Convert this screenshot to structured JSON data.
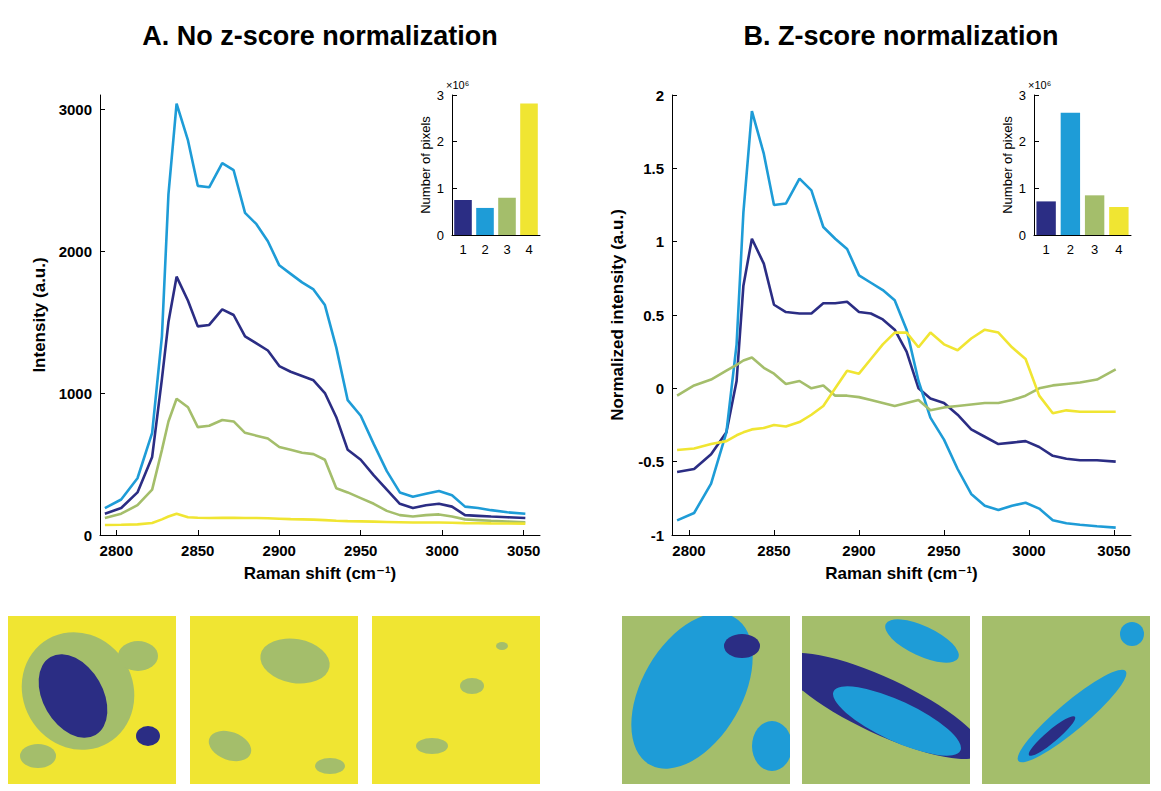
{
  "chart_data": [
    {
      "type": "line",
      "title": "A. No z-score normalization",
      "x_label": "Raman shift (cm⁻¹)",
      "y_label": "Intensity (a.u.)",
      "xlim": [
        2790,
        3060
      ],
      "xticks": [
        2800,
        2850,
        2900,
        2950,
        3000,
        3050
      ],
      "ylim": [
        0,
        3100
      ],
      "yticks": [
        0,
        1000,
        2000,
        3000
      ],
      "grid": false,
      "x": [
        2793,
        2803,
        2813,
        2822,
        2828,
        2832,
        2837,
        2844,
        2850,
        2857,
        2865,
        2872,
        2879,
        2886,
        2893,
        2900,
        2907,
        2914,
        2921,
        2928,
        2935,
        2942,
        2950,
        2958,
        2966,
        2974,
        2982,
        2990,
        2998,
        3006,
        3014,
        3022,
        3030,
        3040,
        3051
      ],
      "series": [
        {
          "color": "#2b2d84",
          "values": [
            150,
            190,
            300,
            550,
            1100,
            1500,
            1820,
            1650,
            1470,
            1480,
            1590,
            1550,
            1400,
            1350,
            1300,
            1190,
            1150,
            1120,
            1090,
            1000,
            830,
            600,
            530,
            420,
            320,
            220,
            190,
            210,
            220,
            200,
            140,
            135,
            130,
            125,
            120
          ]
        },
        {
          "color": "#1e9cd7",
          "values": [
            190,
            250,
            400,
            720,
            1400,
            2400,
            3040,
            2780,
            2460,
            2450,
            2620,
            2570,
            2270,
            2190,
            2070,
            1900,
            1840,
            1780,
            1730,
            1620,
            1320,
            950,
            840,
            640,
            450,
            300,
            270,
            290,
            310,
            280,
            200,
            190,
            175,
            160,
            150
          ]
        },
        {
          "color": "#a4be6b",
          "values": [
            120,
            150,
            210,
            320,
            600,
            800,
            960,
            900,
            760,
            770,
            810,
            800,
            720,
            700,
            680,
            620,
            600,
            580,
            570,
            530,
            330,
            300,
            260,
            220,
            170,
            140,
            130,
            140,
            145,
            130,
            110,
            105,
            100,
            95,
            90
          ]
        },
        {
          "color": "#f0e532",
          "values": [
            70,
            72,
            75,
            85,
            110,
            130,
            150,
            125,
            122,
            120,
            122,
            121,
            120,
            120,
            118,
            115,
            112,
            110,
            108,
            105,
            100,
            98,
            96,
            94,
            92,
            90,
            88,
            88,
            88,
            86,
            84,
            83,
            82,
            81,
            80
          ]
        }
      ]
    },
    {
      "type": "bar",
      "y_label": "Number of pixels",
      "annotation": "×10⁶",
      "categories": [
        "1",
        "2",
        "3",
        "4"
      ],
      "values": [
        0.75,
        0.58,
        0.8,
        2.82
      ],
      "colors": [
        "#2b2d84",
        "#1e9cd7",
        "#a4be6b",
        "#f0e532"
      ],
      "ylim": [
        0,
        3
      ],
      "yticks": [
        0,
        1,
        2,
        3
      ],
      "grid": false
    },
    {
      "type": "line",
      "title": "B. Z-score normalization",
      "x_label": "Raman shift (cm⁻¹)",
      "y_label": "Normalized intensity (a.u.)",
      "xlim": [
        2790,
        3060
      ],
      "xticks": [
        2800,
        2850,
        2900,
        2950,
        3000,
        3050
      ],
      "ylim": [
        -1,
        2
      ],
      "yticks": [
        -1,
        -0.5,
        0,
        0.5,
        1,
        1.5,
        2
      ],
      "grid": false,
      "x": [
        2793,
        2803,
        2813,
        2822,
        2828,
        2832,
        2837,
        2844,
        2850,
        2857,
        2865,
        2872,
        2879,
        2886,
        2893,
        2900,
        2907,
        2914,
        2921,
        2928,
        2935,
        2942,
        2950,
        2958,
        2966,
        2974,
        2982,
        2990,
        2998,
        3006,
        3014,
        3022,
        3030,
        3040,
        3051
      ],
      "series": [
        {
          "color": "#2b2d84",
          "values": [
            -0.57,
            -0.55,
            -0.45,
            -0.3,
            0.05,
            0.7,
            1.02,
            0.85,
            0.57,
            0.52,
            0.51,
            0.51,
            0.58,
            0.58,
            0.59,
            0.52,
            0.51,
            0.47,
            0.4,
            0.25,
            0.0,
            -0.07,
            -0.1,
            -0.18,
            -0.28,
            -0.33,
            -0.38,
            -0.37,
            -0.36,
            -0.4,
            -0.46,
            -0.48,
            -0.49,
            -0.49,
            -0.5
          ]
        },
        {
          "color": "#1e9cd7",
          "values": [
            -0.9,
            -0.85,
            -0.65,
            -0.3,
            0.3,
            1.2,
            1.89,
            1.6,
            1.25,
            1.26,
            1.43,
            1.35,
            1.1,
            1.02,
            0.95,
            0.77,
            0.72,
            0.67,
            0.6,
            0.4,
            0.05,
            -0.2,
            -0.35,
            -0.55,
            -0.72,
            -0.8,
            -0.83,
            -0.8,
            -0.78,
            -0.82,
            -0.9,
            -0.92,
            -0.93,
            -0.94,
            -0.95
          ]
        },
        {
          "color": "#a4be6b",
          "values": [
            -0.05,
            0.02,
            0.06,
            0.12,
            0.16,
            0.19,
            0.21,
            0.14,
            0.1,
            0.03,
            0.05,
            0.0,
            0.02,
            -0.05,
            -0.05,
            -0.06,
            -0.08,
            -0.1,
            -0.12,
            -0.1,
            -0.08,
            -0.15,
            -0.13,
            -0.12,
            -0.11,
            -0.1,
            -0.1,
            -0.08,
            -0.05,
            0.0,
            0.02,
            0.03,
            0.04,
            0.06,
            0.13
          ]
        },
        {
          "color": "#f0e532",
          "values": [
            -0.42,
            -0.41,
            -0.38,
            -0.36,
            -0.32,
            -0.3,
            -0.28,
            -0.27,
            -0.25,
            -0.26,
            -0.23,
            -0.18,
            -0.12,
            0.0,
            0.12,
            0.1,
            0.2,
            0.3,
            0.38,
            0.38,
            0.28,
            0.38,
            0.3,
            0.26,
            0.34,
            0.4,
            0.38,
            0.28,
            0.2,
            -0.05,
            -0.17,
            -0.15,
            -0.16,
            -0.16,
            -0.16
          ]
        }
      ]
    },
    {
      "type": "bar",
      "y_label": "Number of pixels",
      "annotation": "×10⁶",
      "categories": [
        "1",
        "2",
        "3",
        "4"
      ],
      "values": [
        0.72,
        2.62,
        0.85,
        0.6
      ],
      "colors": [
        "#2b2d84",
        "#1e9cd7",
        "#a4be6b",
        "#f0e532"
      ],
      "ylim": [
        0,
        3
      ],
      "yticks": [
        0,
        1,
        2,
        3
      ],
      "grid": false
    }
  ]
}
